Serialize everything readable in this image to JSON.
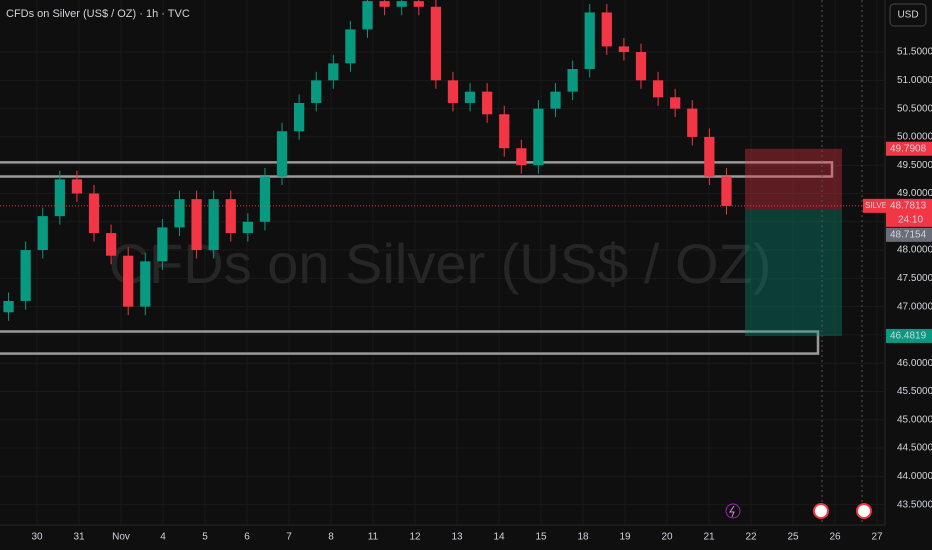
{
  "chart_data": {
    "type": "candlestick",
    "title": "CFDs on Silver (US$ / OZ) · 1h · TVC",
    "watermark": "CFDs on Silver (US$ / OZ)",
    "currency": "USD",
    "symbol": "SILVER",
    "countdown": "24:10",
    "up_color": "#089981",
    "down_color": "#f23645",
    "open": [
      46.9,
      47.1,
      48.0,
      48.6,
      49.25,
      49.0,
      48.3,
      47.9,
      47.0,
      47.8,
      48.4,
      48.9,
      48.0,
      48.9,
      48.3,
      48.5,
      49.3,
      50.1,
      50.6,
      51.0,
      51.3,
      51.9,
      52.4,
      52.3,
      52.4,
      52.3,
      51.0,
      50.6,
      50.8,
      50.4,
      49.8,
      49.5,
      50.5,
      50.8,
      51.2,
      52.2,
      51.6,
      51.5,
      51.0,
      50.7,
      50.5,
      50.0,
      49.3
    ],
    "high": [
      47.25,
      48.15,
      48.75,
      49.4,
      49.4,
      49.15,
      48.45,
      48.05,
      47.95,
      48.55,
      49.05,
      49.05,
      49.05,
      49.05,
      48.65,
      49.45,
      50.25,
      50.75,
      51.15,
      51.45,
      52.05,
      52.55,
      52.55,
      52.55,
      52.55,
      52.45,
      51.15,
      50.95,
      50.95,
      50.55,
      49.95,
      50.65,
      50.95,
      51.35,
      52.35,
      52.35,
      51.75,
      51.65,
      51.15,
      50.85,
      50.65,
      50.15,
      49.45
    ],
    "low": [
      46.75,
      46.95,
      47.85,
      48.45,
      48.85,
      48.15,
      47.75,
      46.85,
      46.85,
      47.65,
      48.25,
      47.85,
      47.85,
      48.15,
      48.15,
      48.35,
      49.15,
      49.95,
      50.45,
      50.85,
      51.15,
      51.75,
      52.15,
      52.15,
      52.15,
      50.85,
      50.45,
      50.45,
      50.25,
      49.65,
      49.35,
      49.35,
      50.35,
      50.65,
      51.05,
      51.45,
      51.35,
      50.85,
      50.55,
      50.35,
      49.85,
      49.15,
      48.63
    ],
    "close": [
      47.1,
      48.0,
      48.6,
      49.25,
      49.0,
      48.3,
      47.9,
      47.0,
      47.8,
      48.4,
      48.9,
      48.0,
      48.9,
      48.3,
      48.5,
      49.3,
      50.1,
      50.6,
      51.0,
      51.3,
      51.9,
      52.4,
      52.3,
      52.4,
      52.3,
      51.0,
      50.6,
      50.8,
      50.4,
      49.8,
      49.5,
      50.5,
      50.8,
      51.2,
      52.2,
      51.6,
      51.5,
      51.0,
      50.7,
      50.5,
      50.0,
      49.3,
      48.78
    ],
    "x_labels": [
      "30",
      "31",
      "Nov",
      "4",
      "5",
      "6",
      "7",
      "8",
      "11",
      "12",
      "13",
      "14",
      "15",
      "18",
      "19",
      "20",
      "21",
      "22",
      "25",
      "26",
      "27"
    ],
    "ylim": [
      43.14,
      52.42
    ],
    "yticks": [
      {
        "value": 43.5,
        "label": "43.5000"
      },
      {
        "value": 44.0,
        "label": "44.0000"
      },
      {
        "value": 44.5,
        "label": "44.5000"
      },
      {
        "value": 45.0,
        "label": "45.0000"
      },
      {
        "value": 45.5,
        "label": "45.5000"
      },
      {
        "value": 46.0,
        "label": "46.0000"
      },
      {
        "value": 46.5,
        "label": "46.5000"
      },
      {
        "value": 47.0,
        "label": "47.0000"
      },
      {
        "value": 47.5,
        "label": "47.5000"
      },
      {
        "value": 48.0,
        "label": "48.0000"
      },
      {
        "value": 48.5,
        "label": "48.5000"
      },
      {
        "value": 49.0,
        "label": "49.0000"
      },
      {
        "value": 49.5,
        "label": "49.5000"
      },
      {
        "value": 50.0,
        "label": "50.0000"
      },
      {
        "value": 50.5,
        "label": "50.5000"
      },
      {
        "value": 51.0,
        "label": "51.0000"
      },
      {
        "value": 51.5,
        "label": "51.5000"
      }
    ],
    "last_price": {
      "value": 48.7813,
      "label": "48.7813"
    },
    "stop": {
      "value": 49.7908,
      "label": "49.7908"
    },
    "entry": {
      "value": 48.7154,
      "label": "48.7154"
    },
    "target": {
      "value": 46.4819,
      "label": "46.4819"
    },
    "zones": [
      {
        "top": 49.55,
        "bottom": 49.3
      },
      {
        "top": 46.56,
        "bottom": 46.17
      }
    ]
  }
}
